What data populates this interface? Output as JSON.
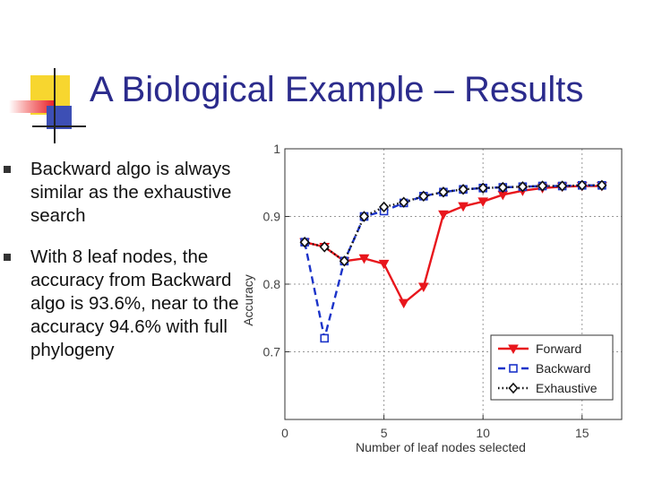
{
  "slide": {
    "title": "A Biological Example – Results",
    "bullets": [
      "Backward algo is always similar as the exhaustive search",
      "With 8 leaf nodes, the accuracy from Backward algo is 93.6%, near to the accuracy 94.6% with full phylogeny"
    ]
  },
  "chart_data": {
    "type": "line",
    "title": "",
    "xlabel": "Number of leaf nodes selected",
    "ylabel": "Accuracy",
    "xlim": [
      0,
      17
    ],
    "ylim": [
      0.6,
      1.0
    ],
    "xticks": [
      0,
      5,
      10,
      15
    ],
    "yticks": [
      0.7,
      0.8,
      0.9,
      1
    ],
    "ytick_labels": [
      "0.7",
      "0.8",
      "0.9",
      "1"
    ],
    "grid": true,
    "legend": "bottom-right",
    "series": [
      {
        "name": "Forward",
        "color": "#e8161c",
        "marker": "triangle-down",
        "style": "solid",
        "x": [
          1,
          2,
          3,
          4,
          5,
          6,
          7,
          8,
          9,
          10,
          11,
          12,
          13,
          14,
          15,
          16
        ],
        "y": [
          0.862,
          0.855,
          0.834,
          0.838,
          0.83,
          0.772,
          0.796,
          0.903,
          0.915,
          0.922,
          0.932,
          0.938,
          0.942,
          0.944,
          0.945,
          0.945
        ]
      },
      {
        "name": "Backward",
        "color": "#1b33c9",
        "marker": "square",
        "style": "dashed",
        "x": [
          1,
          2,
          3,
          4,
          5,
          6,
          7,
          8,
          9,
          10,
          11,
          12,
          13,
          14,
          15,
          16
        ],
        "y": [
          0.862,
          0.72,
          0.834,
          0.9,
          0.908,
          0.92,
          0.93,
          0.936,
          0.94,
          0.942,
          0.943,
          0.944,
          0.945,
          0.945,
          0.946,
          0.946
        ]
      },
      {
        "name": "Exhaustive",
        "color": "#111111",
        "marker": "diamond",
        "style": "dotted",
        "x": [
          1,
          2,
          3,
          4,
          5,
          6,
          7,
          8,
          9,
          10,
          11,
          12,
          13,
          14,
          15,
          16
        ],
        "y": [
          0.862,
          0.855,
          0.834,
          0.9,
          0.914,
          0.921,
          0.93,
          0.936,
          0.94,
          0.942,
          0.943,
          0.944,
          0.945,
          0.945,
          0.946,
          0.946
        ]
      }
    ]
  }
}
